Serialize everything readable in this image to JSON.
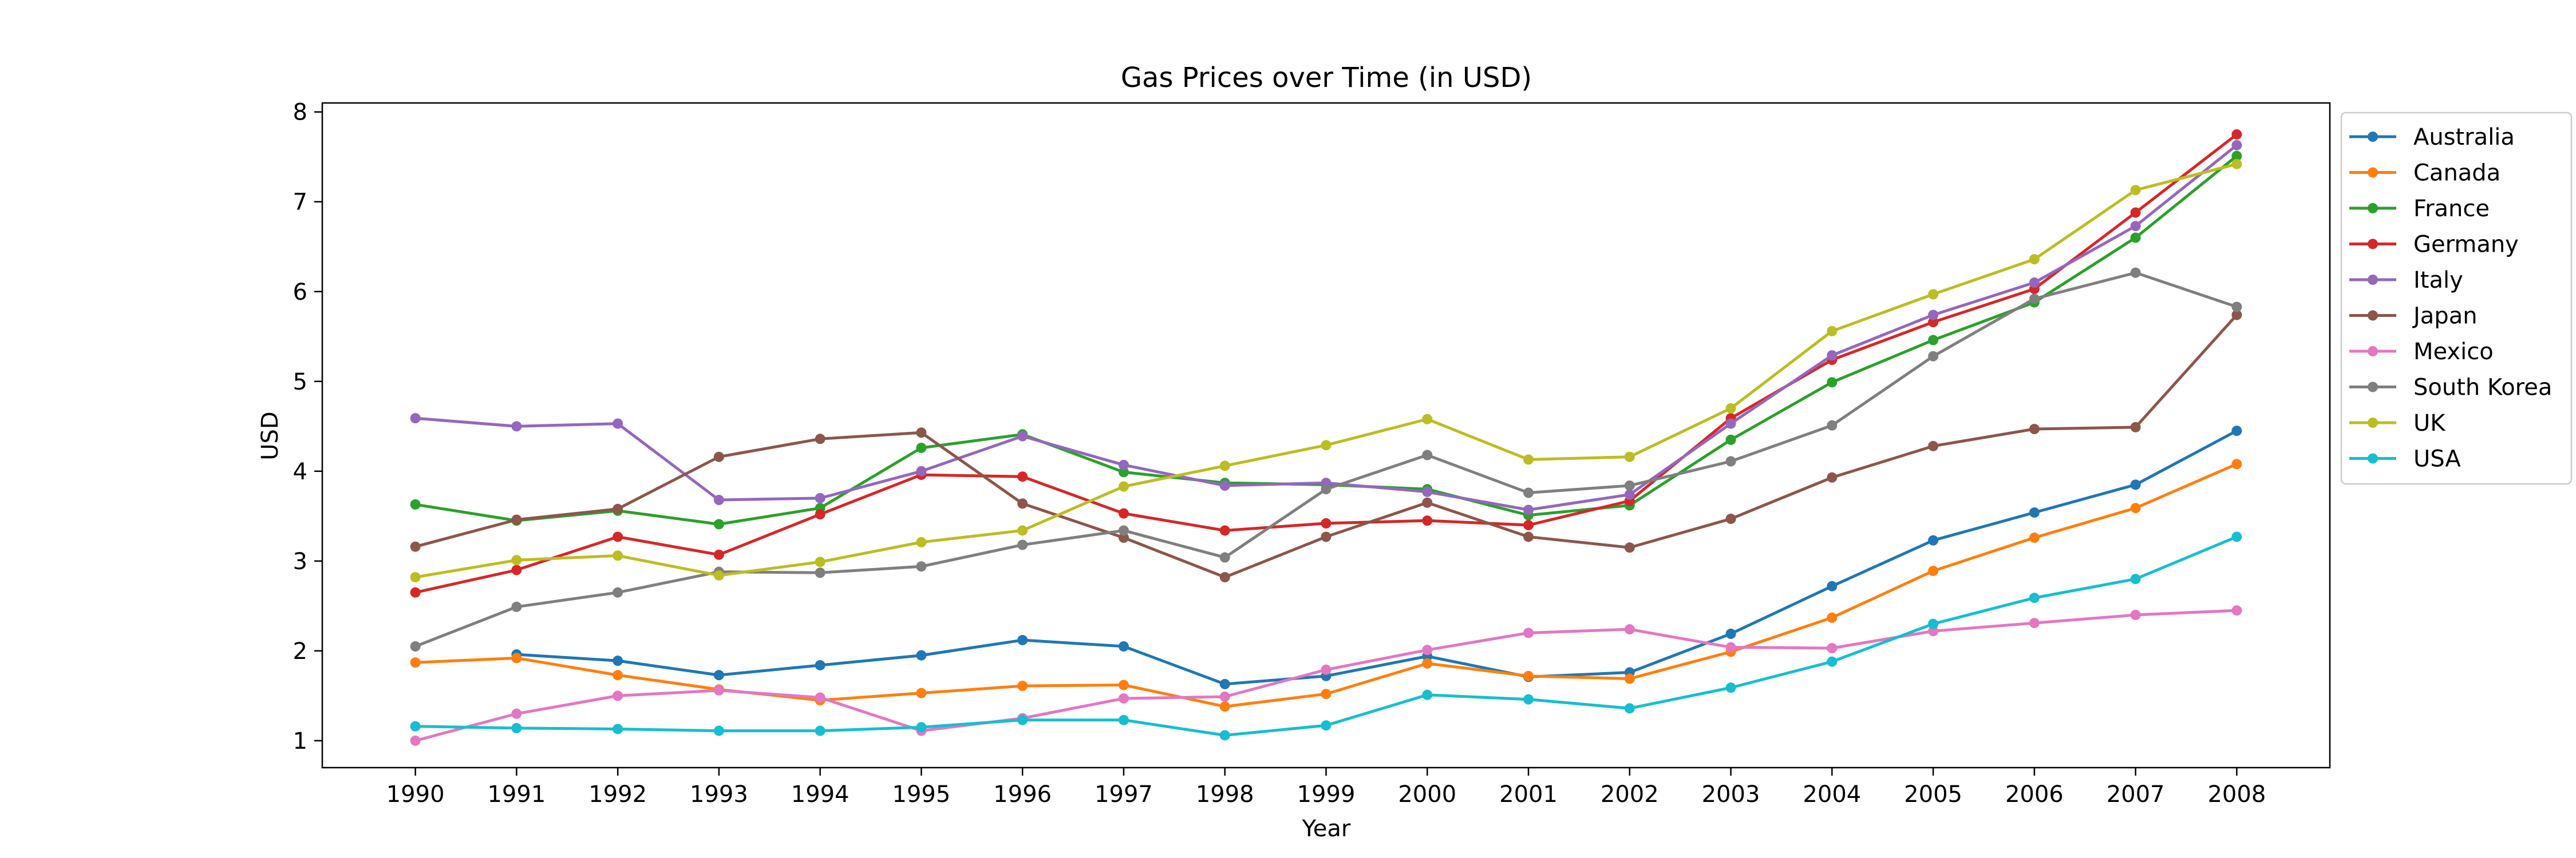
{
  "chart_data": {
    "type": "line",
    "title": "Gas Prices over Time (in USD)",
    "xlabel": "Year",
    "ylabel": "USD",
    "x": [
      "1990",
      "1991",
      "1992",
      "1993",
      "1994",
      "1995",
      "1996",
      "1997",
      "1998",
      "1999",
      "2000",
      "2001",
      "2002",
      "2003",
      "2004",
      "2005",
      "2006",
      "2007",
      "2008"
    ],
    "yticks": [
      1,
      2,
      3,
      4,
      5,
      6,
      7,
      8
    ],
    "ylim": [
      0.7,
      8.1
    ],
    "grid": false,
    "legend_position": "outside-right-top",
    "series": [
      {
        "name": "Australia",
        "color": "#1f77b4",
        "values": [
          null,
          1.96,
          1.89,
          1.73,
          1.84,
          1.95,
          2.12,
          2.05,
          1.63,
          1.72,
          1.94,
          1.71,
          1.76,
          2.19,
          2.72,
          3.23,
          3.54,
          3.85,
          4.45
        ]
      },
      {
        "name": "Canada",
        "color": "#ff7f0e",
        "values": [
          1.87,
          1.92,
          1.73,
          1.57,
          1.45,
          1.53,
          1.61,
          1.62,
          1.38,
          1.52,
          1.86,
          1.72,
          1.69,
          1.99,
          2.37,
          2.89,
          3.26,
          3.59,
          4.08
        ]
      },
      {
        "name": "France",
        "color": "#2ca02c",
        "values": [
          3.63,
          3.45,
          3.56,
          3.41,
          3.59,
          4.26,
          4.41,
          3.99,
          3.87,
          3.85,
          3.8,
          3.51,
          3.62,
          4.35,
          4.99,
          5.46,
          5.88,
          6.6,
          7.51
        ]
      },
      {
        "name": "Germany",
        "color": "#d62728",
        "values": [
          2.65,
          2.9,
          3.27,
          3.07,
          3.52,
          3.96,
          3.94,
          3.53,
          3.34,
          3.42,
          3.45,
          3.4,
          3.67,
          4.59,
          5.24,
          5.66,
          6.03,
          6.88,
          7.75
        ]
      },
      {
        "name": "Italy",
        "color": "#9467bd",
        "values": [
          4.59,
          4.5,
          4.53,
          3.68,
          3.7,
          4.0,
          4.39,
          4.07,
          3.84,
          3.87,
          3.77,
          3.57,
          3.74,
          4.53,
          5.29,
          5.74,
          6.1,
          6.73,
          7.63
        ]
      },
      {
        "name": "Japan",
        "color": "#8c564b",
        "values": [
          3.16,
          3.46,
          3.58,
          4.16,
          4.36,
          4.43,
          3.64,
          3.26,
          2.82,
          3.27,
          3.65,
          3.27,
          3.15,
          3.47,
          3.93,
          4.28,
          4.47,
          4.49,
          5.74
        ]
      },
      {
        "name": "Mexico",
        "color": "#e377c2",
        "values": [
          1.0,
          1.3,
          1.5,
          1.56,
          1.48,
          1.11,
          1.25,
          1.47,
          1.49,
          1.79,
          2.01,
          2.2,
          2.24,
          2.04,
          2.03,
          2.22,
          2.31,
          2.4,
          2.45
        ]
      },
      {
        "name": "South Korea",
        "color": "#7f7f7f",
        "values": [
          2.05,
          2.49,
          2.65,
          2.88,
          2.87,
          2.94,
          3.18,
          3.34,
          3.04,
          3.8,
          4.18,
          3.76,
          3.84,
          4.11,
          4.51,
          5.28,
          5.92,
          6.21,
          5.83
        ]
      },
      {
        "name": "UK",
        "color": "#bcbd22",
        "values": [
          2.82,
          3.01,
          3.06,
          2.84,
          2.99,
          3.21,
          3.34,
          3.83,
          4.06,
          4.29,
          4.58,
          4.13,
          4.16,
          4.7,
          5.56,
          5.97,
          6.36,
          7.13,
          7.42
        ]
      },
      {
        "name": "USA",
        "color": "#17becf",
        "values": [
          1.16,
          1.14,
          1.13,
          1.11,
          1.11,
          1.15,
          1.23,
          1.23,
          1.06,
          1.17,
          1.51,
          1.46,
          1.36,
          1.59,
          1.88,
          2.3,
          2.59,
          2.8,
          3.27
        ]
      }
    ]
  }
}
